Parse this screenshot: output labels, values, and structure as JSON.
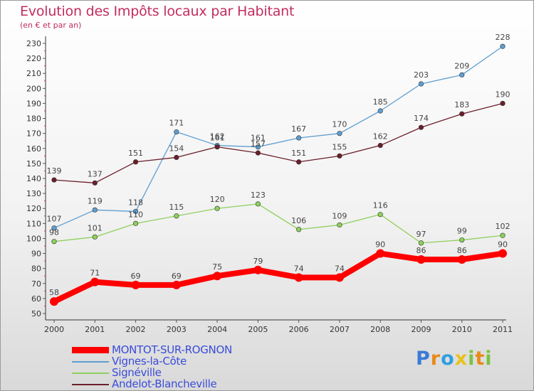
{
  "title": "Evolution des Impôts locaux par Habitant",
  "subtitle": "(en € et par an)",
  "logo_text": "Proxiti",
  "chart_data": {
    "type": "line",
    "x": [
      "2000",
      "2001",
      "2002",
      "2003",
      "2004",
      "2005",
      "2006",
      "2007",
      "2008",
      "2009",
      "2010",
      "2011"
    ],
    "ylim": [
      50,
      230
    ],
    "yticks": [
      50,
      60,
      70,
      80,
      90,
      100,
      110,
      120,
      130,
      140,
      150,
      160,
      170,
      180,
      190,
      200,
      210,
      220,
      230
    ],
    "grid": false,
    "legend_position": "bottom-left",
    "series": [
      {
        "name": "MONTOT-SUR-ROGNON",
        "color": "#ff0000",
        "values": [
          58,
          71,
          69,
          69,
          75,
          79,
          74,
          74,
          90,
          86,
          86,
          90
        ]
      },
      {
        "name": "Vignes-la-Côte",
        "color": "#5f9ed1",
        "values": [
          107,
          119,
          118,
          171,
          162,
          161,
          167,
          170,
          185,
          203,
          209,
          228
        ]
      },
      {
        "name": "Signéville",
        "color": "#8ed05c",
        "values": [
          98,
          101,
          110,
          115,
          120,
          123,
          106,
          109,
          116,
          97,
          99,
          102
        ]
      },
      {
        "name": "Andelot-Blancheville",
        "color": "#6b1f2a",
        "values": [
          139,
          137,
          151,
          154,
          161,
          157,
          151,
          155,
          162,
          174,
          183,
          190
        ]
      }
    ]
  }
}
